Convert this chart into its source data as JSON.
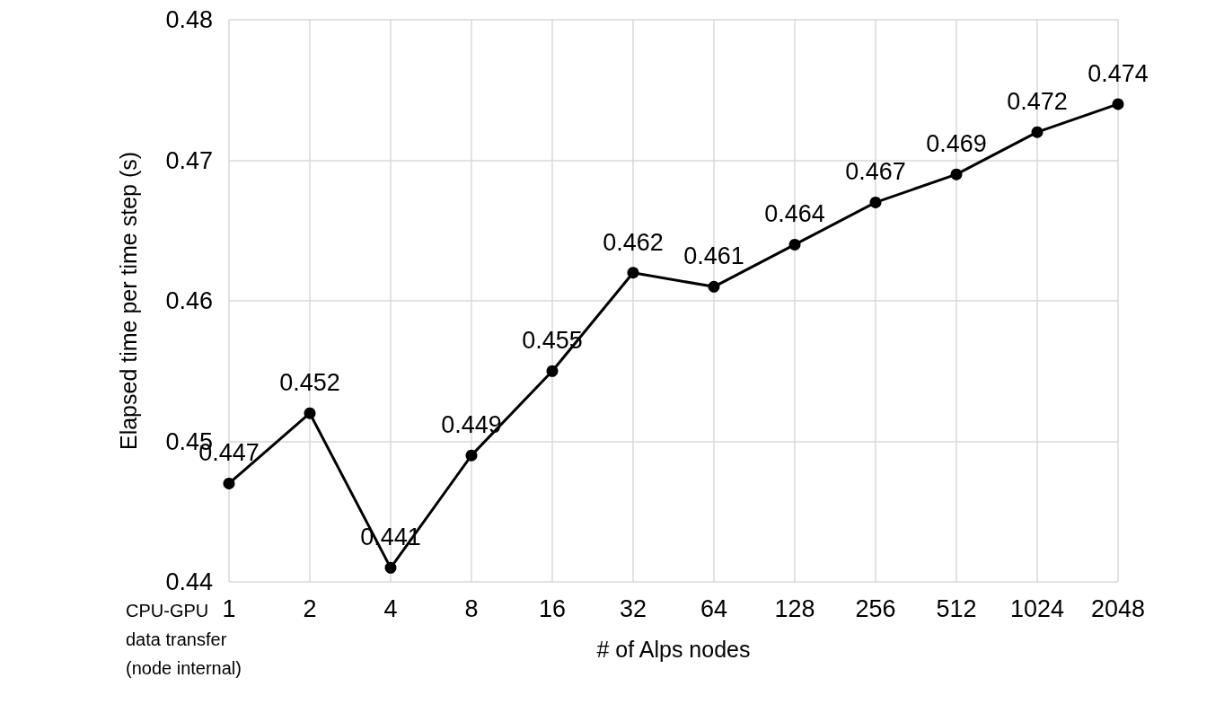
{
  "chart_data": {
    "type": "line",
    "xlabel": "# of Alps nodes",
    "ylabel": "Elapsed time per time step (s)",
    "categories": [
      "1",
      "2",
      "4",
      "8",
      "16",
      "32",
      "64",
      "128",
      "256",
      "512",
      "1024",
      "2048"
    ],
    "series": [
      {
        "color": "#000000",
        "values": [
          0.447,
          0.452,
          0.441,
          0.449,
          0.455,
          0.462,
          0.461,
          0.464,
          0.467,
          0.469,
          0.472,
          0.474
        ]
      }
    ],
    "ylim": [
      0.44,
      0.48
    ],
    "yticks": [
      0.44,
      0.45,
      0.46,
      0.47,
      0.48
    ],
    "grid": true,
    "marker": "circle",
    "line_style": "solid",
    "data_labels": true,
    "annotations": [
      "CPU-GPU data transfer (node internal)"
    ]
  }
}
